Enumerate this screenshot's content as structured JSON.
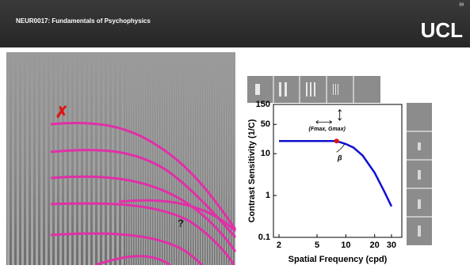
{
  "header": {
    "title": "NEUR0017: Fundamentals of Psychophysics",
    "slide_number": "59",
    "logo": "UCL"
  },
  "figure": {
    "cross_mark": "✗",
    "question_mark": "?"
  },
  "chart_data": {
    "type": "line",
    "x_label": "Spatial Frequency (cpd)",
    "y_label": "Contrast Sensitivity (1/C)",
    "x": [
      2,
      4,
      6,
      8,
      10,
      12,
      15,
      20,
      25,
      30
    ],
    "series": [
      {
        "color": "#1010d0",
        "values": [
          20,
          20,
          20,
          20,
          17,
          14,
          9,
          3.5,
          1.3,
          0.55
        ]
      }
    ],
    "peak": {
      "x": 8,
      "y": 20,
      "color": "#e01010"
    },
    "annotations": [
      "(Fmax, Gmax)",
      "β"
    ],
    "log_x": true,
    "log_y": true,
    "xlim": [
      1.75,
      38.5
    ],
    "ylim": [
      0.1,
      150
    ],
    "xticks": [
      2,
      5,
      10,
      20,
      30
    ],
    "yticks": [
      0.1,
      1,
      10,
      50,
      150
    ]
  }
}
